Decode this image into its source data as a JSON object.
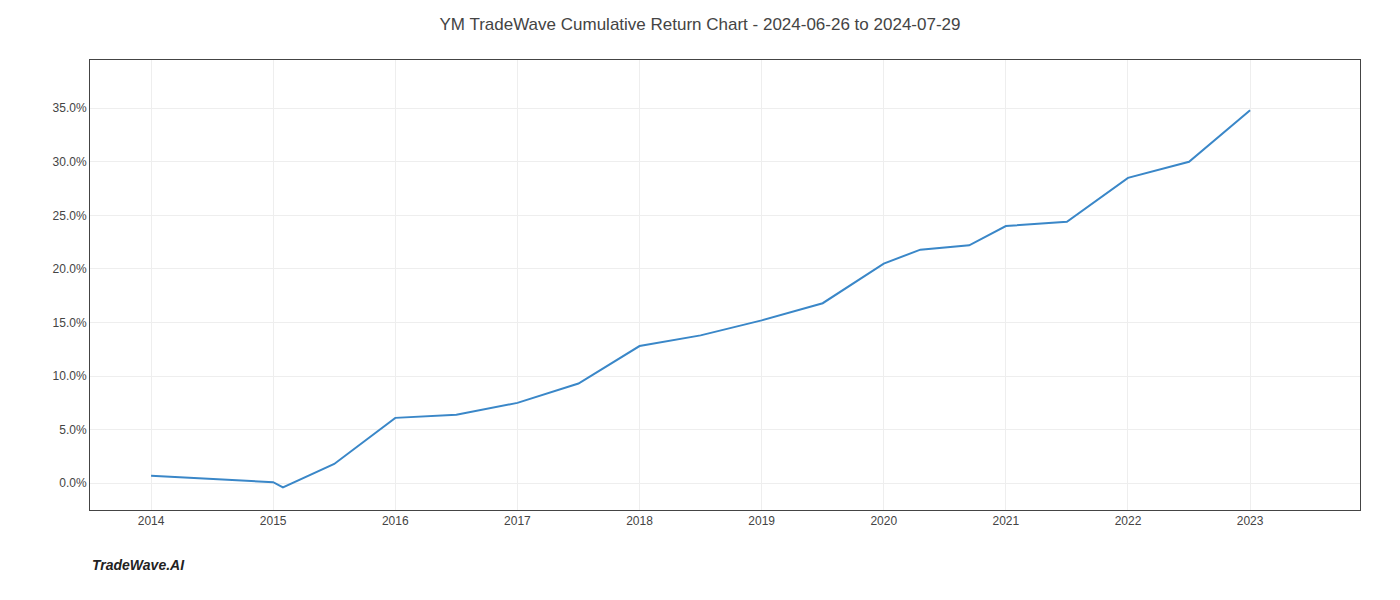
{
  "chart_data": {
    "type": "line",
    "title": "YM TradeWave Cumulative Return Chart - 2024-06-26 to 2024-07-29",
    "annotations": [
      "TradeWave.AI"
    ],
    "x": [
      2014.0,
      2014.5,
      2015.0,
      2015.08,
      2015.5,
      2016.0,
      2016.5,
      2017.0,
      2017.5,
      2018.0,
      2018.5,
      2019.0,
      2019.5,
      2020.0,
      2020.3,
      2020.7,
      2021.0,
      2021.5,
      2022.0,
      2022.5,
      2023.0
    ],
    "values": [
      0.007,
      0.004,
      0.001,
      -0.004,
      0.018,
      0.061,
      0.064,
      0.075,
      0.093,
      0.128,
      0.138,
      0.152,
      0.168,
      0.205,
      0.218,
      0.222,
      0.24,
      0.244,
      0.285,
      0.3,
      0.348
    ],
    "color": "#3a87c8",
    "xlim": [
      2013.5,
      2023.9
    ],
    "ylim": [
      -0.025,
      0.395
    ],
    "xticks": [
      2014,
      2015,
      2016,
      2017,
      2018,
      2019,
      2020,
      2021,
      2022,
      2023
    ],
    "yticks": [
      {
        "value": 0.0,
        "label": "0.0%"
      },
      {
        "value": 0.05,
        "label": "5.0%"
      },
      {
        "value": 0.1,
        "label": "10.0%"
      },
      {
        "value": 0.15,
        "label": "15.0%"
      },
      {
        "value": 0.2,
        "label": "20.0%"
      },
      {
        "value": 0.25,
        "label": "25.0%"
      },
      {
        "value": 0.3,
        "label": "30.0%"
      },
      {
        "value": 0.35,
        "label": "35.0%"
      }
    ],
    "grid": true
  }
}
